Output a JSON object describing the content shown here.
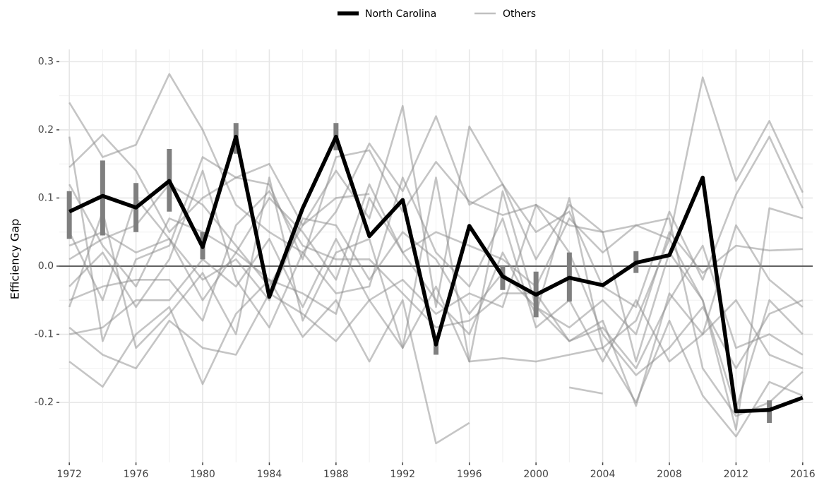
{
  "chart_data": {
    "type": "line",
    "y_label": "Efficiency Gap",
    "x": [
      1972,
      1974,
      1976,
      1978,
      1980,
      1982,
      1984,
      1986,
      1988,
      1990,
      1992,
      1994,
      1996,
      1998,
      2000,
      2002,
      2004,
      2006,
      2008,
      2010,
      2012,
      2014,
      2016
    ],
    "series": [
      {
        "name": "North Carolina",
        "color": "#000000",
        "values": [
          0.08,
          0.103,
          0.086,
          0.125,
          0.028,
          0.19,
          -0.045,
          0.085,
          0.19,
          0.044,
          0.097,
          -0.115,
          0.059,
          -0.015,
          -0.042,
          -0.017,
          -0.028,
          0.005,
          0.016,
          0.13,
          -0.213,
          -0.211,
          -0.193
        ],
        "lower": [
          0.04,
          0.045,
          0.05,
          0.08,
          0.01,
          0.165,
          null,
          null,
          0.17,
          null,
          null,
          -0.13,
          null,
          -0.035,
          -0.075,
          -0.052,
          null,
          -0.01,
          null,
          null,
          null,
          -0.23,
          null
        ],
        "upper": [
          0.11,
          0.155,
          0.122,
          0.172,
          0.05,
          0.21,
          null,
          null,
          0.21,
          null,
          null,
          -0.105,
          null,
          0,
          -0.008,
          0.02,
          null,
          0.022,
          null,
          null,
          null,
          -0.197,
          null
        ],
        "error_color": "#7f7f7f"
      }
    ],
    "others": {
      "name": "Others",
      "color": "#8c8c8c",
      "lines": [
        [
          0.24,
          0.16,
          0.178,
          0.282,
          0.2,
          0.09,
          0.05,
          0.02,
          0.08,
          0.18,
          0.11,
          0.22,
          0.09,
          0.12,
          0.01,
          0.09,
          0.05,
          0.06,
          0.04,
          0.277,
          0.125,
          0.213,
          0.108
        ],
        [
          0.19,
          -0.11,
          0.01,
          0.03,
          0.16,
          0.13,
          0.15,
          0.06,
          0.14,
          0.07,
          0.235,
          -0.06,
          0.205,
          0.12,
          0.05,
          0.08,
          -0.03,
          -0.06,
          0.08,
          -0.02,
          0.105,
          0.19,
          0.085
        ],
        [
          0.145,
          0.193,
          0.14,
          0.05,
          0.1,
          0.13,
          0.12,
          0.01,
          0.16,
          0.17,
          0.08,
          0.153,
          0.095,
          0.075,
          0.09,
          0.06,
          0.05,
          -0.14,
          0.02,
          -0.05,
          -0.24,
          0.085,
          0.07
        ],
        [
          -0.14,
          -0.177,
          -0.1,
          -0.06,
          -0.173,
          -0.07,
          -0.02,
          -0.104,
          -0.05,
          -0.14,
          -0.05,
          -0.26,
          -0.23,
          null,
          null,
          null,
          null,
          null,
          null,
          null,
          null,
          null,
          null
        ],
        [
          null,
          null,
          null,
          null,
          null,
          null,
          null,
          null,
          null,
          null,
          null,
          null,
          null,
          null,
          null,
          -0.178,
          -0.187,
          null,
          null,
          null,
          null,
          null,
          null
        ],
        [
          -0.09,
          -0.13,
          -0.15,
          -0.08,
          -0.12,
          -0.13,
          -0.04,
          -0.07,
          -0.11,
          -0.05,
          -0.12,
          -0.03,
          -0.14,
          -0.135,
          -0.14,
          -0.13,
          -0.12,
          -0.2,
          -0.08,
          -0.19,
          -0.25,
          -0.17,
          -0.19
        ],
        [
          0.01,
          0.04,
          0.06,
          0.12,
          0.09,
          0.03,
          -0.03,
          0.06,
          0.1,
          0.106,
          null,
          null,
          null,
          null,
          null,
          null,
          null,
          null,
          null,
          null,
          null,
          null,
          null
        ],
        [
          -0.06,
          0.08,
          -0.12,
          -0.07,
          -0.01,
          -0.1,
          0.13,
          -0.08,
          0.02,
          0.04,
          -0.12,
          0.13,
          -0.14,
          0.11,
          -0.06,
          -0.11,
          -0.09,
          -0.15,
          -0.05,
          0.03,
          -0.12,
          -0.1,
          -0.13
        ],
        [
          0.05,
          -0.05,
          0.1,
          0.04,
          -0.05,
          0.02,
          0.1,
          0.05,
          -0.02,
          0.12,
          0.02,
          -0.05,
          -0.1,
          0.02,
          -0.07,
          0.1,
          -0.12,
          -0.08,
          0.04,
          -0.05,
          -0.21,
          -0.05,
          -0.1
        ],
        [
          -0.03,
          0.02,
          -0.06,
          0.01,
          0.14,
          -0.02,
          -0.09,
          0.02,
          -0.04,
          -0.03,
          0.13,
          0.02,
          -0.03,
          0.07,
          -0.09,
          -0.05,
          -0.14,
          -0.05,
          -0.14,
          -0.1,
          0.06,
          -0.02,
          -0.06
        ],
        [
          -0.1,
          -0.09,
          -0.05,
          -0.05,
          0.01,
          -0.03,
          0.04,
          -0.06,
          0.04,
          -0.05,
          -0.02,
          -0.07,
          -0.04,
          -0.06,
          0.09,
          0.02,
          -0.1,
          -0.16,
          -0.12,
          -0.06,
          -0.15,
          -0.07,
          -0.05
        ],
        [
          0.03,
          0.05,
          0.02,
          0.04,
          -0.02,
          0.01,
          -0.05,
          0.07,
          0.06,
          -0.02,
          0.05,
          0.01,
          -0.07,
          -0.01,
          -0.06,
          -0.09,
          -0.05,
          -0.1,
          0.05,
          -0.01,
          0.03,
          0.023,
          0.025
        ],
        [
          -0.05,
          -0.03,
          -0.02,
          -0.02,
          -0.08,
          0.06,
          0.11,
          0.03,
          0.01,
          0.01,
          -0.04,
          -0.09,
          -0.08,
          -0.04,
          -0.04,
          -0.11,
          -0.08,
          -0.205,
          -0.04,
          -0.1,
          -0.05,
          -0.13,
          -0.15
        ],
        [
          0.12,
          0.03,
          -0.03,
          0.07,
          0.05,
          0.02,
          -0.02,
          -0.04,
          -0.07,
          0.1,
          0.02,
          0.05,
          0.03,
          0.01,
          -0.03,
          0.07,
          0.02,
          0.06,
          0.07,
          -0.15,
          -0.22,
          -0.2,
          -0.155
        ]
      ]
    },
    "hline": 0,
    "xlim": [
      1971.4,
      2016.6
    ],
    "xticks": [
      1972,
      1976,
      1980,
      1984,
      1988,
      1992,
      1996,
      2000,
      2004,
      2008,
      2012,
      2016
    ],
    "ylim": [
      -0.288,
      0.318
    ],
    "yticks": [
      -0.2,
      -0.1,
      {
        "value": 0,
        "label": "0.0"
      },
      0.1,
      0.2,
      0.3
    ],
    "grid": true,
    "legend_position": "top"
  }
}
